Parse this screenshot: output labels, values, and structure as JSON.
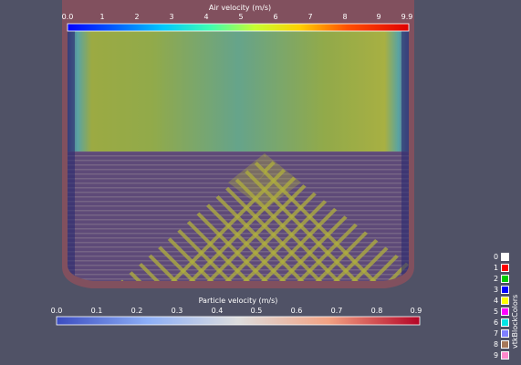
{
  "air_colorbar": {
    "title": "Air velocity  (m/s)",
    "ticks": [
      "0.0",
      "1",
      "2",
      "3",
      "4",
      "5",
      "6",
      "7",
      "8",
      "9",
      "9.9"
    ]
  },
  "particle_colorbar": {
    "title": "Particle velocity  (m/s)",
    "ticks": [
      "0.0",
      "0.1",
      "0.2",
      "0.3",
      "0.4",
      "0.5",
      "0.6",
      "0.7",
      "0.8",
      "0.9"
    ]
  },
  "block_legend": {
    "title": "vtkBlockColors",
    "items": [
      {
        "label": "0",
        "color": "#ffffff"
      },
      {
        "label": "1",
        "color": "#ff0000"
      },
      {
        "label": "2",
        "color": "#00cc00"
      },
      {
        "label": "3",
        "color": "#0000ff"
      },
      {
        "label": "4",
        "color": "#ffff00"
      },
      {
        "label": "5",
        "color": "#ff00ff"
      },
      {
        "label": "6",
        "color": "#00e5e5"
      },
      {
        "label": "7",
        "color": "#7f7fff"
      },
      {
        "label": "8",
        "color": "#a6785a"
      },
      {
        "label": "9",
        "color": "#ff88cc"
      }
    ]
  },
  "colors": {
    "background": "#505266",
    "tank_wall": "#8a4e5e",
    "air_field": "#98a83e",
    "particle_bed": "#5e4a7a",
    "particle_streak": "#b8b83a"
  }
}
